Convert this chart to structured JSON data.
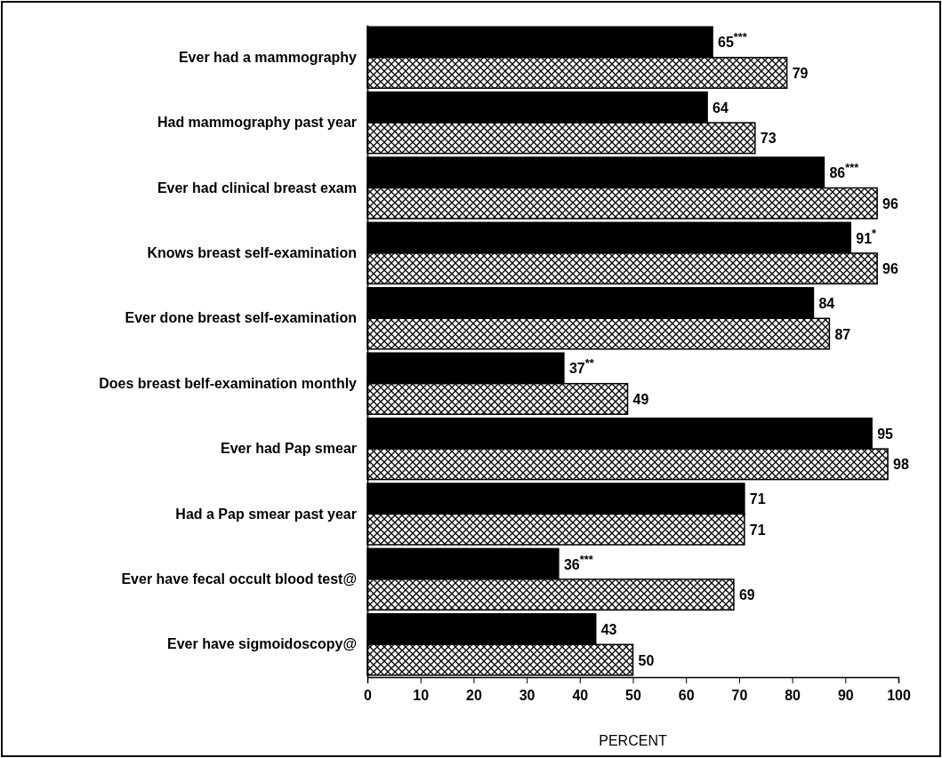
{
  "chart_data": {
    "type": "bar",
    "orientation": "horizontal",
    "xlabel": "PERCENT",
    "categories": [
      "Ever had a mammography",
      "Had mammography past year",
      "Ever had clinical breast exam",
      "Knows breast self-examination",
      "Ever done breast self-examination",
      "Does breast belf-examination monthly",
      "Ever had Pap smear",
      "Had a Pap smear past year",
      "Ever have fecal occult blood test@",
      "Ever have sigmoidoscopy@"
    ],
    "series": [
      {
        "color": "#000000",
        "values": [
          65,
          64,
          86,
          91,
          84,
          37,
          95,
          71,
          36,
          43
        ],
        "value_labels": [
          "65$^{***}$",
          "64",
          "86$^{***}$",
          "91$^{*}$",
          "84",
          "37$^{**}$",
          "95",
          "71",
          "36$^{***}$",
          "43"
        ]
      },
      {
        "color": "#000000",
        "values": [
          79,
          73,
          96,
          96,
          87,
          49,
          98,
          71,
          69,
          50
        ],
        "value_labels": [
          "79",
          "73",
          "96",
          "96",
          "87",
          "49",
          "98",
          "71",
          "69",
          "50"
        ]
      }
    ],
    "xlim": [
      0,
      100
    ],
    "xticks": [
      0,
      10,
      20,
      30,
      40,
      50,
      60,
      70,
      80,
      90,
      100
    ]
  }
}
